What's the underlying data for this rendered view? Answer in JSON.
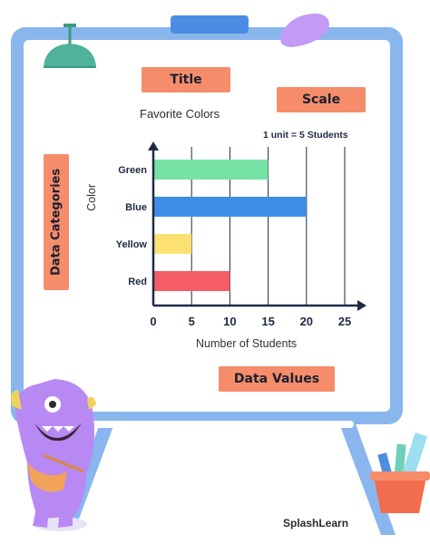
{
  "callouts": {
    "title": "Title",
    "scale": "Scale",
    "categories": "Data Categories",
    "values": "Data Values"
  },
  "chart_data": {
    "type": "bar",
    "orientation": "horizontal",
    "title": "Favorite Colors",
    "subtitle": "1 unit = 5 Students",
    "xlabel": "Number of Students",
    "ylabel": "Color",
    "categories": [
      "Green",
      "Blue",
      "Yellow",
      "Red"
    ],
    "values": [
      15,
      20,
      5,
      10
    ],
    "colors": [
      "#76e2a3",
      "#3d8ee6",
      "#fae172",
      "#f55c66"
    ],
    "xticks": [
      "0",
      "5",
      "10",
      "15",
      "20",
      "25"
    ],
    "xlim": [
      0,
      25
    ],
    "grid": true
  },
  "brand": "SplashLearn"
}
